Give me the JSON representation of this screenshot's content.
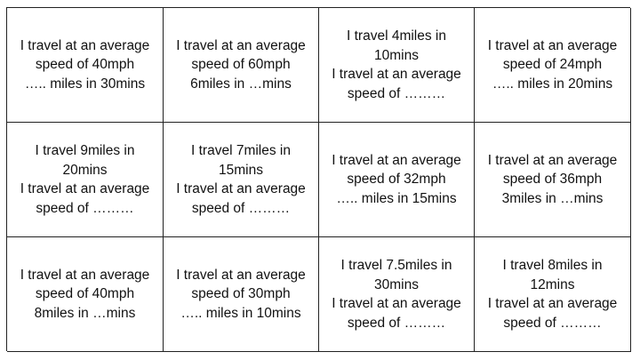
{
  "cards": [
    {
      "lines": [
        "I travel at an average",
        "speed of 40mph",
        "….. miles in 30mins"
      ]
    },
    {
      "lines": [
        "I travel at an average",
        "speed of 60mph",
        "6miles in …mins"
      ]
    },
    {
      "lines": [
        "I travel 4miles in",
        "10mins",
        "I travel at an average",
        "speed of ………"
      ]
    },
    {
      "lines": [
        "I travel at an average",
        "speed of 24mph",
        "….. miles in 20mins"
      ]
    },
    {
      "lines": [
        "I travel 9miles in",
        "20mins",
        "I travel at an average",
        "speed of ………"
      ]
    },
    {
      "lines": [
        "I travel 7miles in",
        "15mins",
        "I travel at an average",
        "speed of ………"
      ]
    },
    {
      "lines": [
        "I travel at an average",
        "speed of 32mph",
        "….. miles in 15mins"
      ]
    },
    {
      "lines": [
        "I travel at an average",
        "speed of 36mph",
        "3miles in …mins"
      ]
    },
    {
      "lines": [
        "I travel at an average",
        "speed of 40mph",
        "8miles in …mins"
      ]
    },
    {
      "lines": [
        "I travel at an average",
        "speed of 30mph",
        "….. miles in 10mins"
      ]
    },
    {
      "lines": [
        "I travel 7.5miles in",
        "30mins",
        "I travel at an average",
        "speed of ………"
      ]
    },
    {
      "lines": [
        "I travel 8miles in",
        "12mins",
        "I travel at an average",
        "speed of ………"
      ]
    }
  ]
}
